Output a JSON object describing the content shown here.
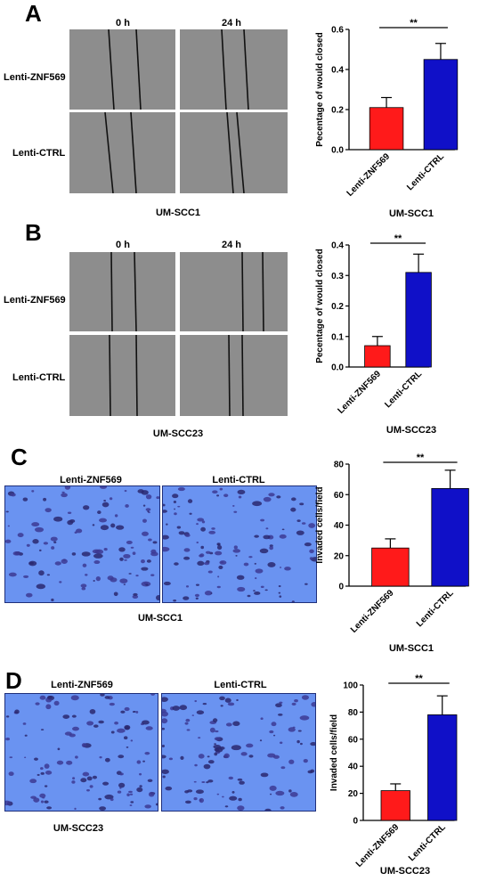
{
  "panels": [
    {
      "letter": "A",
      "kind": "wound",
      "time_labels": [
        "0 h",
        "24 h"
      ],
      "row_labels": [
        "Lenti-ZNF569",
        "Lenti-CTRL"
      ],
      "image_caption": "UM-SCC1",
      "chart_caption": "UM-SCC1",
      "chart_data": {
        "type": "bar",
        "categories": [
          "Lenti-ZNF569",
          "Lenti-CTRL"
        ],
        "values": [
          0.21,
          0.45
        ],
        "errors": [
          0.05,
          0.08
        ],
        "colors": [
          "#ff1a1a",
          "#1010c8"
        ],
        "ylabel": "Pecentage of would closed",
        "ylim": [
          0,
          0.6
        ],
        "ticks": [
          0.0,
          0.2,
          0.4,
          0.6
        ],
        "tick_labels": [
          "0.0",
          "0.2",
          "0.4",
          "0.6"
        ],
        "significance": "**"
      }
    },
    {
      "letter": "B",
      "kind": "wound",
      "time_labels": [
        "0 h",
        "24 h"
      ],
      "row_labels": [
        "Lenti-ZNF569",
        "Lenti-CTRL"
      ],
      "image_caption": "UM-SCC23",
      "chart_caption": "UM-SCC23",
      "chart_data": {
        "type": "bar",
        "categories": [
          "Lenti-ZNF569",
          "Lenti-CTRL"
        ],
        "values": [
          0.07,
          0.31
        ],
        "errors": [
          0.03,
          0.06
        ],
        "colors": [
          "#ff1a1a",
          "#1010c8"
        ],
        "ylabel": "Pecentage of would closed",
        "ylim": [
          0,
          0.4
        ],
        "ticks": [
          0.0,
          0.1,
          0.2,
          0.3,
          0.4
        ],
        "tick_labels": [
          "0.0",
          "0.1",
          "0.2",
          "0.3",
          "0.4"
        ],
        "significance": "**"
      }
    },
    {
      "letter": "C",
      "kind": "invasion",
      "col_labels": [
        "Lenti-ZNF569",
        "Lenti-CTRL"
      ],
      "image_caption": "UM-SCC1",
      "chart_caption": "UM-SCC1",
      "chart_data": {
        "type": "bar",
        "categories": [
          "Lenti-ZNF569",
          "Lenti-CTRL"
        ],
        "values": [
          25,
          64
        ],
        "errors": [
          6,
          12
        ],
        "colors": [
          "#ff1a1a",
          "#1010c8"
        ],
        "ylabel": "Invaded cells/field",
        "ylim": [
          0,
          80
        ],
        "ticks": [
          0,
          20,
          40,
          60,
          80
        ],
        "tick_labels": [
          "0",
          "20",
          "40",
          "60",
          "80"
        ],
        "significance": "**"
      }
    },
    {
      "letter": "D",
      "kind": "invasion",
      "col_labels": [
        "Lenti-ZNF569",
        "Lenti-CTRL"
      ],
      "image_caption": "UM-SCC23",
      "chart_caption": "UM-SCC23",
      "chart_data": {
        "type": "bar",
        "categories": [
          "Lenti-ZNF569",
          "Lenti-CTRL"
        ],
        "values": [
          22,
          78
        ],
        "errors": [
          5,
          14
        ],
        "colors": [
          "#ff1a1a",
          "#1010c8"
        ],
        "ylabel": "Invaded cells/field",
        "ylim": [
          0,
          100
        ],
        "ticks": [
          0,
          20,
          40,
          60,
          80,
          100
        ],
        "tick_labels": [
          "0",
          "20",
          "40",
          "60",
          "80",
          "100"
        ],
        "significance": "**"
      }
    }
  ]
}
